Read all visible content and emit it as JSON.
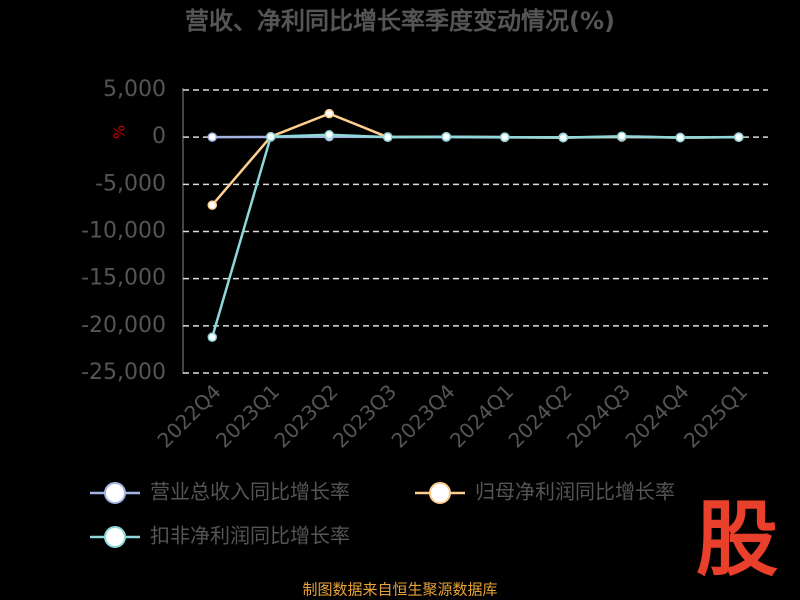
{
  "chart_data": {
    "type": "line",
    "title": "营收、净利同比增长率季度变动情况(%)",
    "y_label": "%",
    "categories": [
      "2022Q4",
      "2023Q1",
      "2023Q2",
      "2023Q3",
      "2023Q4",
      "2024Q1",
      "2024Q2",
      "2024Q3",
      "2024Q4",
      "2025Q1"
    ],
    "series": [
      {
        "name": "营业总收入同比增长率",
        "color": "#a4b4e4",
        "values": [
          10,
          20,
          50,
          30,
          0,
          -20,
          -10,
          10,
          -20,
          0
        ]
      },
      {
        "name": "归母净利润同比增长率",
        "color": "#ffcf8f",
        "values": [
          -7200,
          50,
          2500,
          0,
          50,
          0,
          -50,
          50,
          -50,
          0
        ]
      },
      {
        "name": "扣非净利润同比增长率",
        "color": "#8ed8dc",
        "values": [
          -21200,
          50,
          250,
          0,
          50,
          0,
          -50,
          100,
          -50,
          0
        ]
      }
    ],
    "ylim": [
      -25000,
      5000
    ],
    "yticks": [
      {
        "value": 5000,
        "label": "5,000"
      },
      0,
      {
        "value": -5000,
        "label": "-5,000"
      },
      {
        "value": -10000,
        "label": "-10,000"
      },
      {
        "value": -15000,
        "label": "-15,000"
      },
      {
        "value": -20000,
        "label": "-20,000"
      },
      {
        "value": -25000,
        "label": "-25,000"
      }
    ],
    "grid": true,
    "source": "制图数据来自恒生聚源数据库",
    "watermark": "股"
  }
}
